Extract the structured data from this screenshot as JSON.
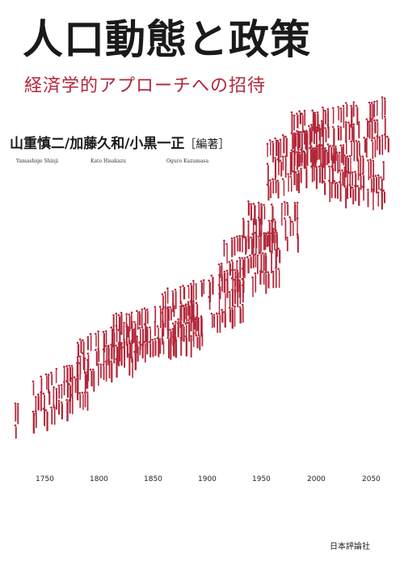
{
  "title": "人口動態と政策",
  "subtitle": "経済学的アプローチへの招待",
  "authors": {
    "line": "山重慎二/加藤久和/小黒一正",
    "role": "［編著］",
    "romaji": [
      "Yamashige Shinji",
      "Kato Hisakazu",
      "Oguro Kazumasa"
    ]
  },
  "timeline_years": [
    "1750",
    "1800",
    "1850",
    "1900",
    "1950",
    "2000",
    "2050"
  ],
  "publisher": "日本評論社",
  "colors": {
    "accent": "#b3273a",
    "text": "#1a1a1a",
    "background": "#ffffff"
  }
}
